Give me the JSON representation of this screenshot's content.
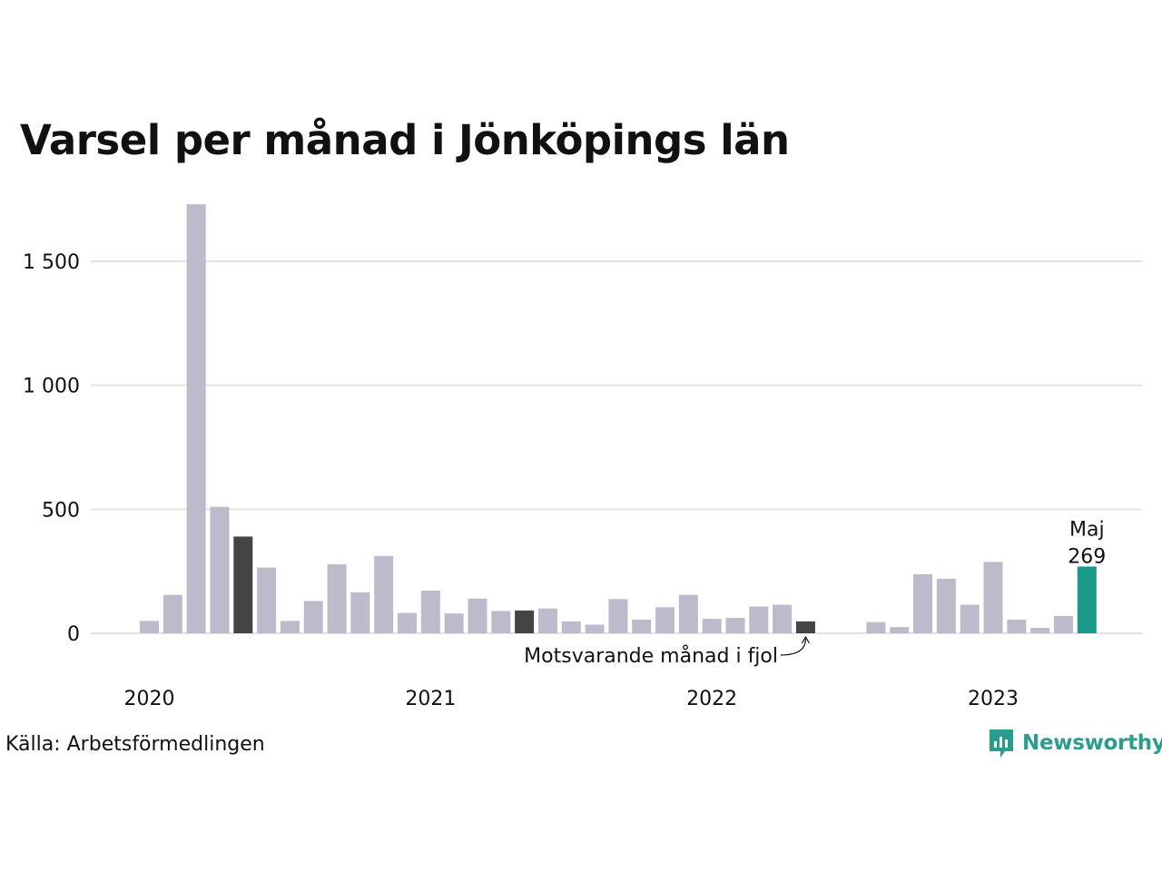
{
  "title": "Varsel per månad i Jönköpings län",
  "source": "Källa: Arbetsförmedlingen",
  "logo": {
    "text": "Newsworthy",
    "icon": "newsworthy-chart-bubble-icon"
  },
  "colors": {
    "bar": "#bcbbcb",
    "previous_year": "#444444",
    "highlight": "#1a9988",
    "grid": "#e3e3e3",
    "text": "#111111"
  },
  "chart_data": {
    "type": "bar",
    "title": "Varsel per månad i Jönköpings län",
    "xlabel": "",
    "ylabel": "",
    "ylim": [
      0,
      1750
    ],
    "yticks": [
      0,
      500,
      1000,
      1500
    ],
    "ytick_labels": [
      "0",
      "500",
      "1 000",
      "1 500"
    ],
    "xtick_labels": [
      {
        "label": "2020",
        "at": "2020-01"
      },
      {
        "label": "2021",
        "at": "2021-01"
      },
      {
        "label": "2022",
        "at": "2022-01"
      },
      {
        "label": "2023",
        "at": "2023-01"
      }
    ],
    "grid": true,
    "categories": [
      "2020-01",
      "2020-02",
      "2020-03",
      "2020-04",
      "2020-05",
      "2020-06",
      "2020-07",
      "2020-08",
      "2020-09",
      "2020-10",
      "2020-11",
      "2020-12",
      "2021-01",
      "2021-02",
      "2021-03",
      "2021-04",
      "2021-05",
      "2021-06",
      "2021-07",
      "2021-08",
      "2021-09",
      "2021-10",
      "2021-11",
      "2021-12",
      "2022-01",
      "2022-02",
      "2022-03",
      "2022-04",
      "2022-05",
      "2022-06",
      "2022-07",
      "2022-08",
      "2022-09",
      "2022-10",
      "2022-11",
      "2022-12",
      "2023-01",
      "2023-02",
      "2023-03",
      "2023-04",
      "2023-05"
    ],
    "values": [
      50,
      155,
      1730,
      510,
      390,
      265,
      50,
      130,
      278,
      165,
      312,
      82,
      172,
      80,
      140,
      90,
      92,
      100,
      48,
      35,
      138,
      55,
      105,
      155,
      58,
      62,
      108,
      115,
      48,
      0,
      0,
      45,
      25,
      238,
      220,
      115,
      288,
      55,
      22,
      70,
      269
    ],
    "highlight": {
      "category": "2023-05",
      "label": "Maj",
      "value_label": "269"
    },
    "previous_year_same_month": [
      "2020-05",
      "2021-05",
      "2022-05"
    ],
    "annotation": {
      "text": "Motsvarande månad i fjol",
      "target": "2022-05"
    }
  }
}
